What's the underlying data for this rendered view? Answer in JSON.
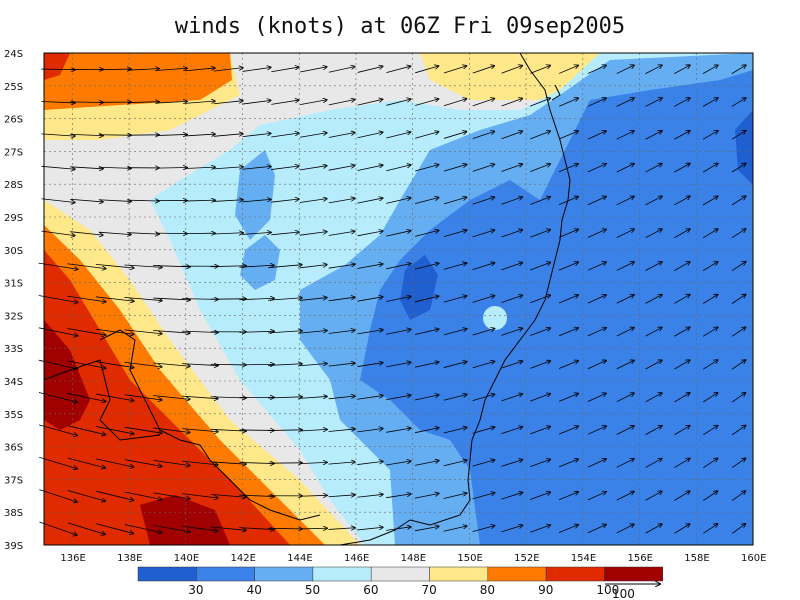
{
  "title": "winds (knots) at 06Z Fri 09sep2005",
  "map": {
    "lat_labels": [
      "24S",
      "25S",
      "26S",
      "27S",
      "28S",
      "29S",
      "30S",
      "31S",
      "32S",
      "33S",
      "34S",
      "35S",
      "36S",
      "37S",
      "38S",
      "39S"
    ],
    "lon_labels": [
      "136E",
      "138E",
      "140E",
      "142E",
      "144E",
      "146E",
      "148E",
      "150E",
      "152E",
      "154E",
      "156E",
      "158E",
      "160E"
    ],
    "lat_range": [
      -39,
      -24
    ],
    "lon_range": [
      135,
      160
    ],
    "grid": "dashed"
  },
  "colorbar": {
    "labels": [
      "30",
      "40",
      "50",
      "60",
      "70",
      "80",
      "90",
      "100"
    ],
    "colors": [
      "#1f5fd0",
      "#3b82e8",
      "#66aef2",
      "#b6ecfb",
      "#e8e8e8",
      "#ffe88a",
      "#ff7a00",
      "#e02a00",
      "#a00000"
    ],
    "ref_vector_label": "100"
  }
}
